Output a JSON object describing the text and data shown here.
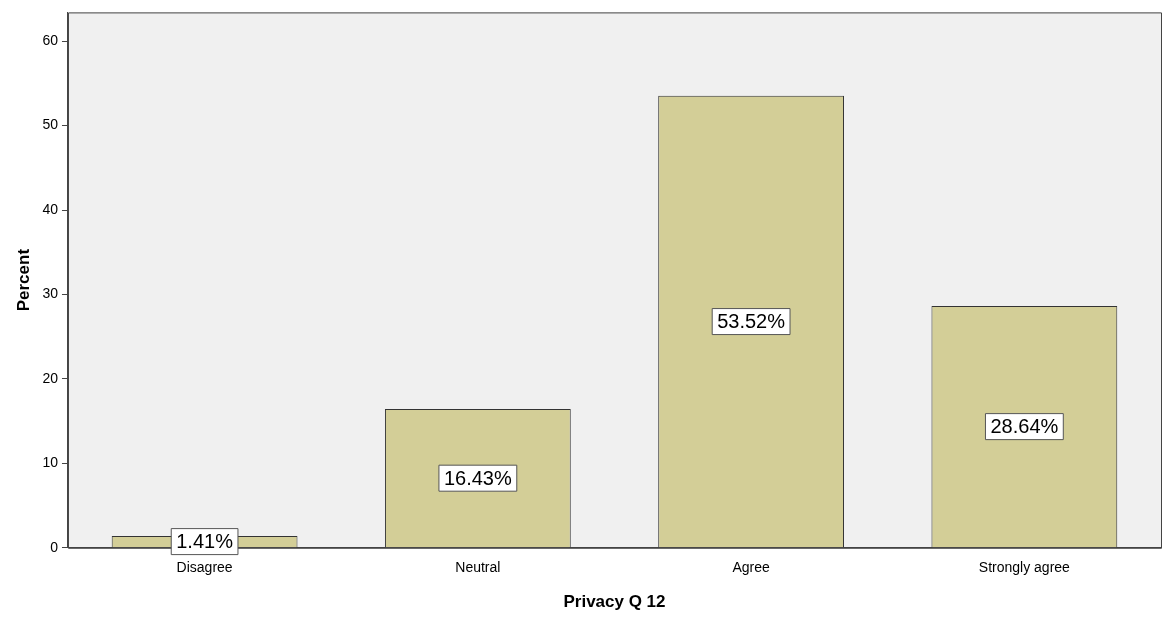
{
  "chart_data": {
    "type": "bar",
    "xlabel": "Privacy Q 12",
    "ylabel": "Percent",
    "categories": [
      "Disagree",
      "Neutral",
      "Agree",
      "Strongly agree"
    ],
    "values": [
      1.41,
      16.43,
      53.52,
      28.64
    ],
    "value_labels": [
      "1.41%",
      "16.43%",
      "53.52%",
      "28.64%"
    ],
    "color": "#d3ce97",
    "ylim": [
      0,
      63.4
    ],
    "yticks": [
      0,
      10,
      20,
      30,
      40,
      50,
      60
    ],
    "grid": false,
    "legend": false
  }
}
